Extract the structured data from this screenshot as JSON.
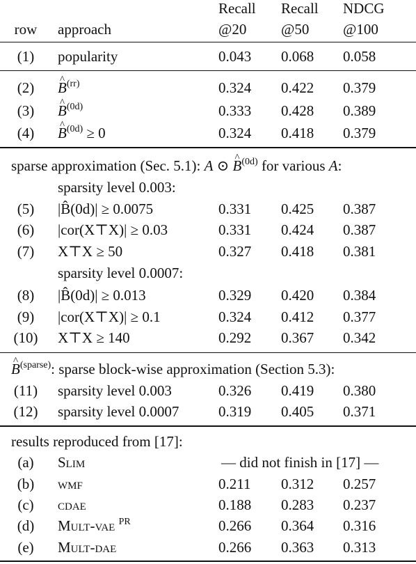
{
  "header": {
    "row": "row",
    "approach": "approach",
    "recall20_top": "Recall",
    "recall20_bot": "@20",
    "recall50_top": "Recall",
    "recall50_bot": "@50",
    "ndcg_top": "NDCG",
    "ndcg_bot": "@100"
  },
  "group1": [
    {
      "row": "(1)",
      "approach": "popularity",
      "r20": "0.043",
      "r50": "0.068",
      "n100": "0.058"
    }
  ],
  "group2": [
    {
      "row": "(2)",
      "sym": "B",
      "sup": "(rr)",
      "suffix": "",
      "r20": "0.324",
      "r50": "0.422",
      "n100": "0.379"
    },
    {
      "row": "(3)",
      "sym": "B",
      "sup": "(0d)",
      "suffix": "",
      "r20": "0.333",
      "r50": "0.428",
      "n100": "0.389"
    },
    {
      "row": "(4)",
      "sym": "B",
      "sup": "(0d)",
      "suffix": " ≥ 0",
      "r20": "0.324",
      "r50": "0.418",
      "n100": "0.379"
    }
  ],
  "section_sparse": {
    "lead": "sparse approximation (Sec. 5.1): ",
    "A": "A",
    "op": " ⊙ ",
    "sym": "B",
    "sup": "(0d)",
    "tail_pre": " for various ",
    "A2": "A",
    "tail_post": ":",
    "level_a": "sparsity level 0.003:",
    "level_b": "sparsity level 0.0007:"
  },
  "group3a": [
    {
      "row": "(5)",
      "text": "|B̂(0d)| ≥ 0.0075",
      "r20": "0.331",
      "r50": "0.425",
      "n100": "0.387"
    },
    {
      "row": "(6)",
      "text": "|cor(X⊤X)| ≥ 0.03",
      "r20": "0.331",
      "r50": "0.424",
      "n100": "0.387"
    },
    {
      "row": "(7)",
      "text": "X⊤X ≥ 50",
      "r20": "0.327",
      "r50": "0.418",
      "n100": "0.381"
    }
  ],
  "group3b": [
    {
      "row": "(8)",
      "text": "|B̂(0d)| ≥ 0.013",
      "r20": "0.329",
      "r50": "0.420",
      "n100": "0.384"
    },
    {
      "row": "(9)",
      "text": "|cor(X⊤X)| ≥ 0.1",
      "r20": "0.324",
      "r50": "0.412",
      "n100": "0.377"
    },
    {
      "row": "(10)",
      "text": "X⊤X ≥ 140",
      "r20": "0.292",
      "r50": "0.367",
      "n100": "0.342"
    }
  ],
  "section_block": {
    "sym": "B",
    "sup": "(sparse)",
    "rest": ": sparse block-wise approximation (Section 5.3):"
  },
  "group4": [
    {
      "row": "(11)",
      "approach": "sparsity level 0.003",
      "r20": "0.326",
      "r50": "0.419",
      "n100": "0.380"
    },
    {
      "row": "(12)",
      "approach": "sparsity level 0.0007",
      "r20": "0.319",
      "r50": "0.405",
      "n100": "0.371"
    }
  ],
  "section_repro": {
    "title": "results reproduced from [17]:"
  },
  "group5": [
    {
      "row": "(a)",
      "approach": "Slim",
      "span": "— did not finish in [17] —"
    },
    {
      "row": "(b)",
      "approach": "wmf",
      "r20": "0.211",
      "r50": "0.312",
      "n100": "0.257"
    },
    {
      "row": "(c)",
      "approach": "cdae",
      "r20": "0.188",
      "r50": "0.283",
      "n100": "0.237"
    },
    {
      "row": "(d)",
      "approach": "Mult-vae",
      "sup": "PR",
      "r20": "0.266",
      "r50": "0.364",
      "n100": "0.316"
    },
    {
      "row": "(e)",
      "approach": "Mult-dae",
      "r20": "0.266",
      "r50": "0.363",
      "n100": "0.313"
    }
  ]
}
